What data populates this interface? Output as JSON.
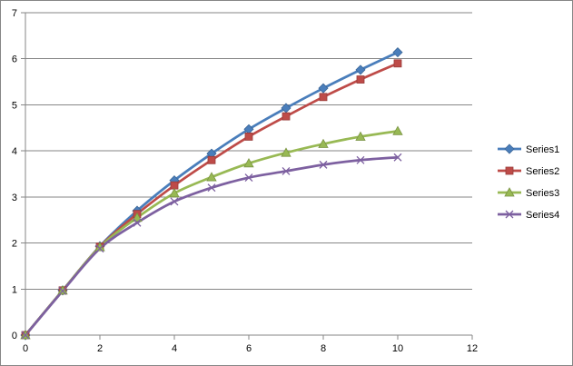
{
  "chart_data": {
    "type": "line",
    "title": "",
    "xlabel": "",
    "ylabel": "",
    "xlim": [
      0,
      12
    ],
    "ylim": [
      0,
      7
    ],
    "x_ticks": [
      0,
      2,
      4,
      6,
      8,
      10,
      12
    ],
    "y_ticks": [
      0,
      1,
      2,
      3,
      4,
      5,
      6,
      7
    ],
    "grid": "horizontal major gridlines",
    "legend_position": "right",
    "x": [
      0,
      1,
      2,
      3,
      4,
      5,
      6,
      7,
      8,
      9,
      10
    ],
    "series": [
      {
        "name": "Series1",
        "marker": "diamond",
        "color": "#4a7ebb",
        "values": [
          0,
          0.97,
          1.93,
          2.7,
          3.36,
          3.94,
          4.47,
          4.93,
          5.36,
          5.76,
          6.14
        ]
      },
      {
        "name": "Series2",
        "marker": "square",
        "color": "#be4b48",
        "values": [
          0,
          0.97,
          1.92,
          2.63,
          3.25,
          3.8,
          4.31,
          4.75,
          5.17,
          5.55,
          5.9
        ]
      },
      {
        "name": "Series3",
        "marker": "triangle",
        "color": "#98b954",
        "values": [
          0,
          0.97,
          1.91,
          2.55,
          3.08,
          3.43,
          3.73,
          3.96,
          4.15,
          4.31,
          4.43
        ]
      },
      {
        "name": "Series4",
        "marker": "x",
        "color": "#7d60a0",
        "values": [
          0,
          0.96,
          1.88,
          2.44,
          2.9,
          3.2,
          3.42,
          3.56,
          3.7,
          3.8,
          3.86
        ]
      }
    ]
  }
}
